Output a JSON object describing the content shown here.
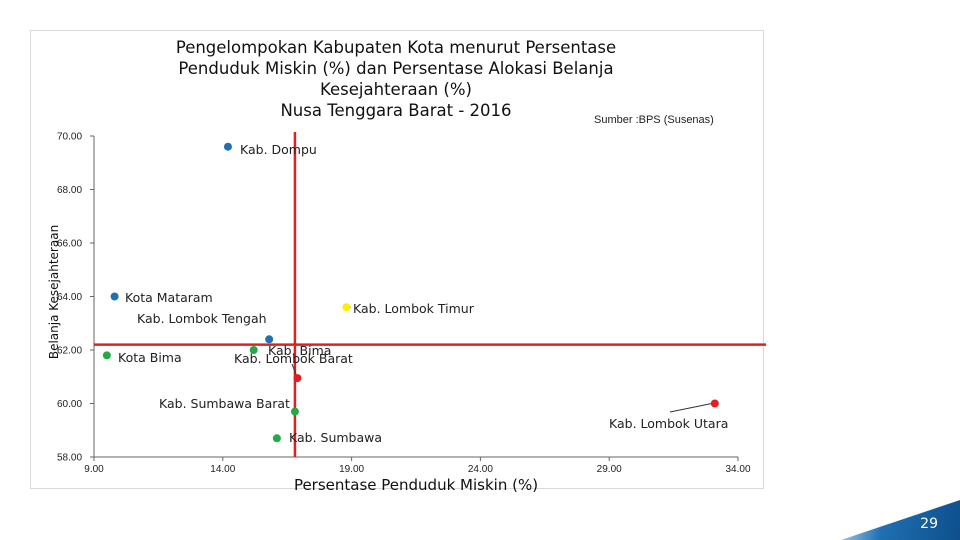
{
  "chart_data": {
    "type": "scatter",
    "title_lines": [
      "Pengelompokan Kabupaten Kota menurut Persentase",
      "Penduduk Miskin (%) dan Persentase Alokasi Belanja",
      "Kesejahteraan (%)",
      "Nusa Tenggara Barat - 2016"
    ],
    "source": "Sumber :BPS (Susenas)",
    "xlabel": "Persentase Penduduk Miskin (%)",
    "ylabel": "Belanja Kesejahteraan",
    "xlim": [
      9,
      34
    ],
    "ylim": [
      58,
      70
    ],
    "x_ticks": [
      "9.00",
      "14.00",
      "19.00",
      "24.00",
      "29.00",
      "34.00"
    ],
    "y_ticks": [
      "58.00",
      "60.00",
      "62.00",
      "64.00",
      "66.00",
      "68.00",
      "70.00"
    ],
    "grid": false,
    "reference_lines": {
      "x": 16.8,
      "y": 62.2,
      "color": "#e02020"
    },
    "points": [
      {
        "label": "Kab. Dompu",
        "x": 14.2,
        "y": 69.6,
        "color": "#1f6fb2"
      },
      {
        "label": "Kota Mataram",
        "x": 9.8,
        "y": 64.0,
        "color": "#1f6fb2"
      },
      {
        "label": "Kab. Lombok Tengah",
        "x": 15.8,
        "y": 62.4,
        "color": "#1f6fb2"
      },
      {
        "label": "Kab. Lombok Timur",
        "x": 18.8,
        "y": 63.6,
        "color": "#ffee00"
      },
      {
        "label": "Kota Bima",
        "x": 9.5,
        "y": 61.8,
        "color": "#22aa44"
      },
      {
        "label": "Kab. Bima",
        "x": 15.2,
        "y": 62.0,
        "color": "#22aa44"
      },
      {
        "label": "Kab. Lombok Barat",
        "x": 16.9,
        "y": 60.95,
        "color": "#e02020"
      },
      {
        "label": "Kab. Sumbawa Barat",
        "x": 16.8,
        "y": 59.7,
        "color": "#22aa44"
      },
      {
        "label": "Kab. Sumbawa",
        "x": 16.1,
        "y": 58.7,
        "color": "#22aa44"
      },
      {
        "label": "Kab. Lombok Utara",
        "x": 33.1,
        "y": 60.0,
        "color": "#e02020"
      }
    ]
  },
  "page_number": "29"
}
